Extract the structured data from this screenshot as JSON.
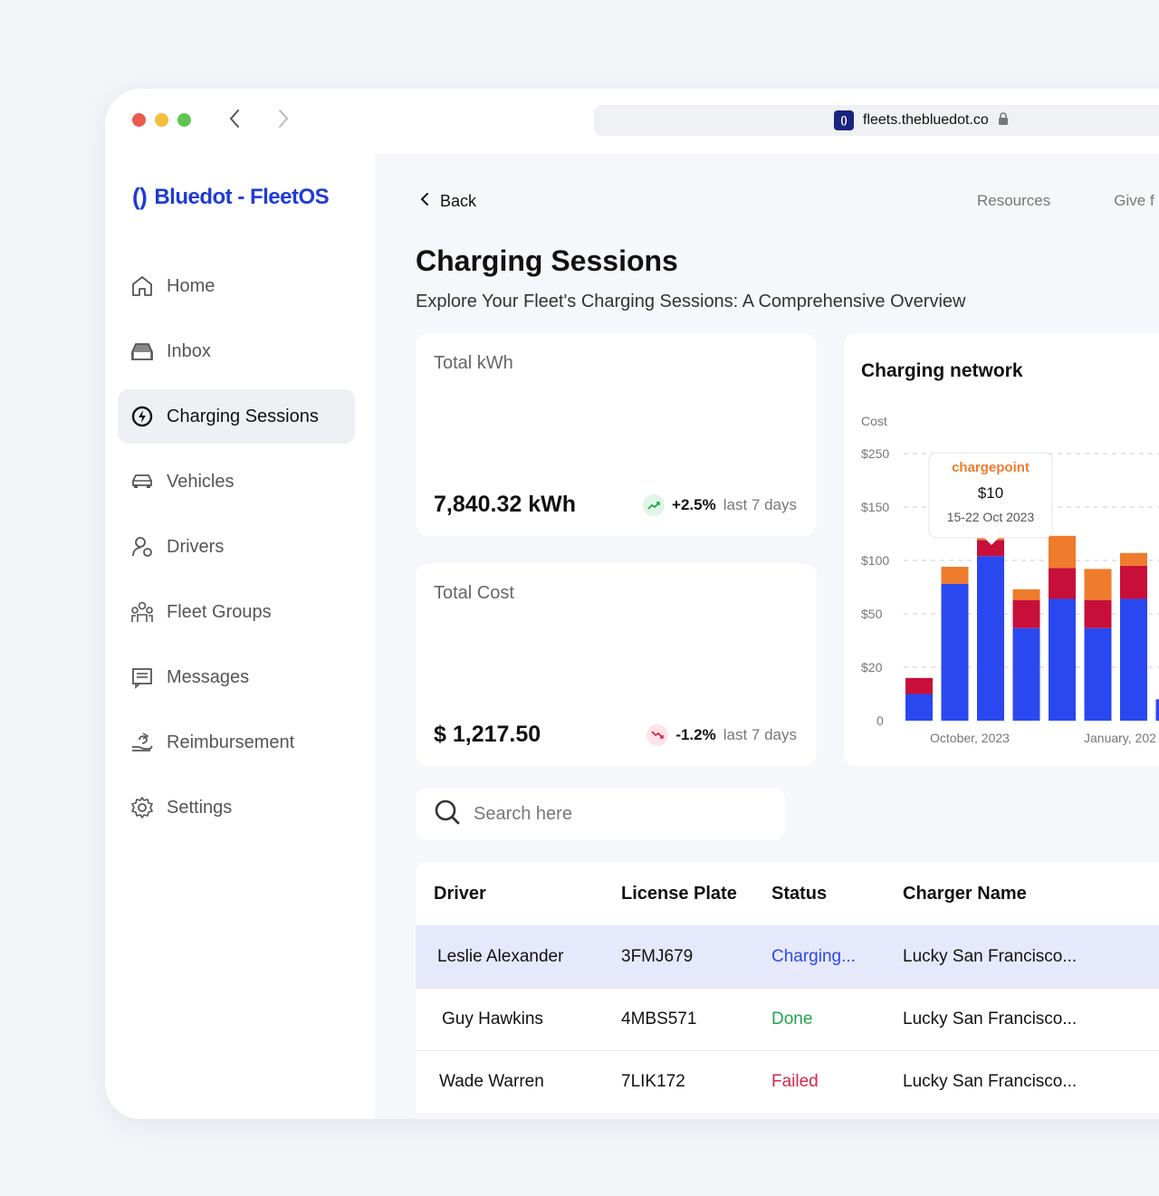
{
  "browser": {
    "url": "fleets.thebluedot.co",
    "traffic_lights": [
      "#ec5a50",
      "#f5bd3c",
      "#5ec552"
    ]
  },
  "app": {
    "logo_text": "Bluedot - FleetOS",
    "brand_color": "#1f3bd6"
  },
  "sidebar": {
    "items": [
      {
        "label": "Home",
        "icon": "home-icon",
        "active": false
      },
      {
        "label": "Inbox",
        "icon": "inbox-icon",
        "active": false
      },
      {
        "label": "Charging Sessions",
        "icon": "charging-icon",
        "active": true
      },
      {
        "label": "Vehicles",
        "icon": "car-icon",
        "active": false
      },
      {
        "label": "Drivers",
        "icon": "drivers-icon",
        "active": false
      },
      {
        "label": "Fleet Groups",
        "icon": "group-icon",
        "active": false
      },
      {
        "label": "Messages",
        "icon": "message-icon",
        "active": false
      },
      {
        "label": "Reimbursement",
        "icon": "reimbursement-icon",
        "active": false
      },
      {
        "label": "Settings",
        "icon": "gear-icon",
        "active": false
      }
    ]
  },
  "header": {
    "back_label": "Back",
    "links": [
      "Resources",
      "Give f"
    ]
  },
  "page": {
    "title": "Charging Sessions",
    "subtitle": "Explore Your Fleet's Charging Sessions: A Comprehensive Overview"
  },
  "stats": {
    "kwh": {
      "label": "Total kWh",
      "value": "7,840.32 kWh",
      "change": "+2.5%",
      "period": "last 7 days",
      "direction": "up",
      "color": "#22a447"
    },
    "cost": {
      "label": "Total Cost",
      "value": "$ 1,217.50",
      "change": "-1.2%",
      "period": "last 7 days",
      "direction": "down",
      "color": "#d6264b"
    }
  },
  "chart_data": {
    "type": "bar",
    "stacked": true,
    "title": "Charging network",
    "ylabel": "Cost",
    "y_ticks": [
      "$250",
      "$150",
      "$100",
      "$50",
      "$20",
      "0"
    ],
    "x_tick_labels": [
      "October,  2023",
      "January, 202"
    ],
    "series": [
      {
        "color": "#2a48f0",
        "values": [
          10,
          78,
          104,
          42,
          64,
          42,
          64,
          8
        ]
      },
      {
        "color": "#c70f3a",
        "values": [
          6,
          0,
          15,
          21,
          29,
          21,
          31,
          0
        ]
      },
      {
        "color": "#ef7b2c",
        "values": [
          0,
          16,
          14,
          10,
          30,
          29,
          12,
          0
        ]
      }
    ],
    "grid": true,
    "tooltip": {
      "brand": "chargepoint",
      "value": "$10",
      "dates": "15-22 Oct 2023",
      "bar_index": 2
    }
  },
  "search": {
    "placeholder": "Search here"
  },
  "table": {
    "columns": [
      "Driver",
      "License Plate",
      "Status",
      "Charger Name"
    ],
    "rows": [
      {
        "driver": "Leslie Alexander",
        "plate": "3FMJ679",
        "status": "Charging...",
        "status_color": "#2a48f0",
        "charger": "Lucky San Francisco..."
      },
      {
        "driver": "Guy Hawkins",
        "plate": "4MBS571",
        "status": "Done",
        "status_color": "#22a447",
        "charger": "Lucky San Francisco..."
      },
      {
        "driver": "Wade Warren",
        "plate": "7LIK172",
        "status": "Failed",
        "status_color": "#d6264b",
        "charger": "Lucky San Francisco..."
      }
    ]
  }
}
